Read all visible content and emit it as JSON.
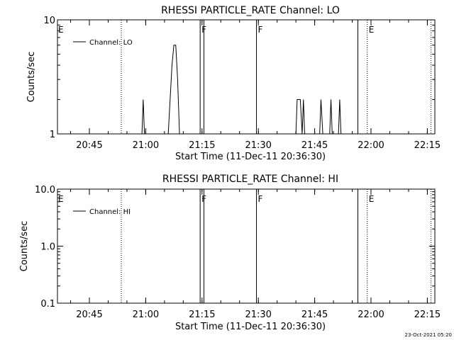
{
  "footer": {
    "timestamp": "23-Oct-2021 05:20"
  },
  "colors": {
    "foreground": "#000000",
    "background": "#ffffff"
  },
  "chart_data": [
    {
      "type": "line",
      "title": "RHESSI PARTICLE_RATE Channel: LO",
      "xlabel": "Start Time (11-Dec-11 20:36:30)",
      "ylabel": "Counts/sec",
      "yscale": "log",
      "ylim": [
        1,
        10
      ],
      "y_ticks": [
        1,
        10
      ],
      "y_tick_labels": [
        "1",
        "10"
      ],
      "xlim_minutes": [
        "20:36:30",
        "22:17:00"
      ],
      "x_tick_labels": [
        "20:45",
        "21:00",
        "21:15",
        "21:30",
        "21:45",
        "22:00",
        "22:15"
      ],
      "legend": {
        "label": "Channel: LO",
        "placement": "top-left"
      },
      "series": [
        {
          "name": "Channel: LO",
          "points": [
            [
              "20:38:00",
              1
            ],
            [
              "20:59:00",
              1
            ],
            [
              "20:59:20",
              2
            ],
            [
              "20:59:40",
              1
            ],
            [
              "21:06:00",
              1
            ],
            [
              "21:06:30",
              2
            ],
            [
              "21:07:00",
              4
            ],
            [
              "21:07:30",
              6
            ],
            [
              "21:08:00",
              6
            ],
            [
              "21:08:30",
              3
            ],
            [
              "21:09:00",
              1
            ],
            [
              "21:40:00",
              1
            ],
            [
              "21:40:20",
              2
            ],
            [
              "21:41:10",
              2
            ],
            [
              "21:41:40",
              1
            ],
            [
              "21:42:00",
              2
            ],
            [
              "21:42:20",
              1
            ],
            [
              "21:46:20",
              1
            ],
            [
              "21:46:40",
              2
            ],
            [
              "21:47:10",
              1
            ],
            [
              "21:49:00",
              1
            ],
            [
              "21:49:20",
              2
            ],
            [
              "21:49:40",
              1
            ],
            [
              "21:51:20",
              1
            ],
            [
              "21:51:40",
              2
            ],
            [
              "21:52:00",
              1
            ],
            [
              "22:16:00",
              1
            ]
          ]
        }
      ],
      "markers": [
        {
          "label": "E",
          "time": "20:36:30",
          "style": "none"
        },
        {
          "label": "",
          "time": "20:53:30",
          "style": "dotted"
        },
        {
          "label": "F",
          "time": "21:14:30",
          "style": "solid"
        },
        {
          "label": "",
          "time": "21:15:30",
          "style": "solid"
        },
        {
          "label": "F",
          "time": "21:29:30",
          "style": "solid"
        },
        {
          "label": "",
          "time": "21:56:30",
          "style": "solid"
        },
        {
          "label": "E",
          "time": "21:59:00",
          "style": "dotted"
        },
        {
          "label": "",
          "time": "22:16:00",
          "style": "dotted"
        }
      ]
    },
    {
      "type": "line",
      "title": "RHESSI PARTICLE_RATE Channel: HI",
      "xlabel": "Start Time (11-Dec-11 20:36:30)",
      "ylabel": "Counts/sec",
      "yscale": "log",
      "ylim": [
        0.1,
        10
      ],
      "y_ticks": [
        0.1,
        1,
        10
      ],
      "y_tick_labels": [
        "0.1",
        "1.0",
        "10.0"
      ],
      "xlim_minutes": [
        "20:36:30",
        "22:17:00"
      ],
      "x_tick_labels": [
        "20:45",
        "21:00",
        "21:15",
        "21:30",
        "21:45",
        "22:00",
        "22:15"
      ],
      "legend": {
        "label": "Channel: HI",
        "placement": "top-left"
      },
      "series": [
        {
          "name": "Channel: HI",
          "points": []
        }
      ],
      "markers": [
        {
          "label": "E",
          "time": "20:36:30",
          "style": "none"
        },
        {
          "label": "",
          "time": "20:53:30",
          "style": "dotted"
        },
        {
          "label": "F",
          "time": "21:14:30",
          "style": "solid"
        },
        {
          "label": "",
          "time": "21:15:30",
          "style": "solid"
        },
        {
          "label": "F",
          "time": "21:29:30",
          "style": "solid"
        },
        {
          "label": "",
          "time": "21:56:30",
          "style": "solid"
        },
        {
          "label": "E",
          "time": "21:59:00",
          "style": "dotted"
        },
        {
          "label": "",
          "time": "22:16:00",
          "style": "dotted"
        }
      ]
    }
  ]
}
